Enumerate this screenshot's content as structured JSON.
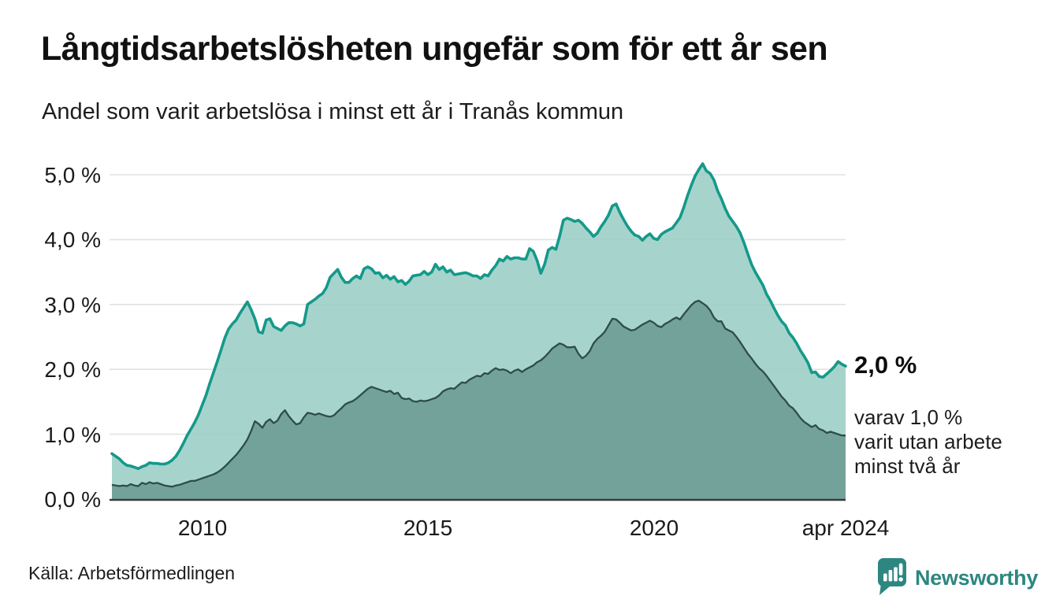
{
  "header": {
    "title": "Långtidsarbetslösheten ungefär som för ett år sen",
    "subtitle": "Andel som varit arbetslösa i minst ett år i Tranås kommun"
  },
  "chart_data": {
    "type": "area",
    "title": "Långtidsarbetslösheten ungefär som för ett år sen",
    "subtitle": "Andel som varit arbetslösa i minst ett år i Tranås kommun",
    "unit": "%",
    "frequency": "monthly",
    "x_start": "2008-01",
    "x_end": "2024-04",
    "ylim": [
      0,
      5.5
    ],
    "grid": "horizontal",
    "colors": {
      "line_1yr": "#14998a",
      "fill_1yr": "#9ccfc6",
      "line_2yr": "#2e4d48",
      "fill_2yr": "#6f9e96",
      "gridline": "#e2e2e2",
      "axis": "#3a3a3a"
    },
    "yticks": [
      {
        "v": 0,
        "label": "0,0 %"
      },
      {
        "v": 1,
        "label": "1,0 %"
      },
      {
        "v": 2,
        "label": "2,0 %"
      },
      {
        "v": 3,
        "label": "3,0 %"
      },
      {
        "v": 4,
        "label": "4,0 %"
      },
      {
        "v": 5,
        "label": "5,0 %"
      }
    ],
    "xticks": [
      {
        "t": 2010.0,
        "label": "2010"
      },
      {
        "t": 2015.0,
        "label": "2015"
      },
      {
        "t": 2020.0,
        "label": "2020"
      },
      {
        "t": 2024.25,
        "label": "apr 2024"
      }
    ],
    "series": [
      {
        "name": "Arbetslösa minst ett år",
        "values": [
          0.7,
          0.66,
          0.62,
          0.56,
          0.52,
          0.51,
          0.49,
          0.47,
          0.5,
          0.52,
          0.56,
          0.55,
          0.55,
          0.54,
          0.54,
          0.56,
          0.6,
          0.66,
          0.75,
          0.86,
          0.98,
          1.08,
          1.18,
          1.3,
          1.45,
          1.6,
          1.78,
          1.95,
          2.12,
          2.3,
          2.48,
          2.62,
          2.7,
          2.76,
          2.86,
          2.95,
          3.04,
          2.92,
          2.78,
          2.58,
          2.56,
          2.76,
          2.78,
          2.66,
          2.63,
          2.6,
          2.67,
          2.72,
          2.72,
          2.7,
          2.67,
          2.7,
          3.0,
          3.04,
          3.08,
          3.13,
          3.17,
          3.26,
          3.42,
          3.48,
          3.54,
          3.42,
          3.34,
          3.34,
          3.4,
          3.44,
          3.4,
          3.55,
          3.58,
          3.55,
          3.48,
          3.49,
          3.41,
          3.45,
          3.39,
          3.43,
          3.35,
          3.37,
          3.31,
          3.36,
          3.44,
          3.45,
          3.46,
          3.51,
          3.46,
          3.5,
          3.62,
          3.54,
          3.58,
          3.5,
          3.53,
          3.46,
          3.47,
          3.48,
          3.49,
          3.47,
          3.44,
          3.44,
          3.4,
          3.46,
          3.44,
          3.53,
          3.6,
          3.7,
          3.67,
          3.74,
          3.7,
          3.72,
          3.72,
          3.7,
          3.7,
          3.86,
          3.82,
          3.68,
          3.48,
          3.62,
          3.84,
          3.88,
          3.85,
          4.05,
          4.3,
          4.33,
          4.31,
          4.28,
          4.3,
          4.25,
          4.18,
          4.12,
          4.05,
          4.1,
          4.2,
          4.28,
          4.38,
          4.52,
          4.55,
          4.42,
          4.31,
          4.21,
          4.13,
          4.07,
          4.05,
          3.99,
          4.05,
          4.09,
          4.02,
          4.0,
          4.08,
          4.12,
          4.15,
          4.18,
          4.26,
          4.34,
          4.5,
          4.68,
          4.84,
          4.98,
          5.08,
          5.17,
          5.06,
          5.02,
          4.92,
          4.75,
          4.63,
          4.48,
          4.36,
          4.28,
          4.2,
          4.1,
          3.95,
          3.78,
          3.62,
          3.5,
          3.4,
          3.3,
          3.16,
          3.06,
          2.94,
          2.83,
          2.74,
          2.68,
          2.56,
          2.49,
          2.4,
          2.29,
          2.2,
          2.1,
          1.95,
          1.96,
          1.89,
          1.88,
          1.93,
          1.98,
          2.04,
          2.12,
          2.08,
          2.05
        ]
      },
      {
        "name": "Varav utan arbete minst två år",
        "values": [
          0.22,
          0.21,
          0.2,
          0.21,
          0.2,
          0.23,
          0.21,
          0.2,
          0.25,
          0.23,
          0.26,
          0.24,
          0.25,
          0.23,
          0.21,
          0.2,
          0.19,
          0.21,
          0.22,
          0.24,
          0.26,
          0.28,
          0.28,
          0.3,
          0.32,
          0.34,
          0.36,
          0.38,
          0.41,
          0.45,
          0.5,
          0.56,
          0.62,
          0.68,
          0.75,
          0.83,
          0.92,
          1.05,
          1.2,
          1.16,
          1.1,
          1.19,
          1.23,
          1.17,
          1.21,
          1.31,
          1.37,
          1.28,
          1.21,
          1.15,
          1.17,
          1.26,
          1.33,
          1.32,
          1.3,
          1.32,
          1.3,
          1.28,
          1.27,
          1.29,
          1.35,
          1.4,
          1.46,
          1.49,
          1.51,
          1.55,
          1.6,
          1.65,
          1.7,
          1.73,
          1.71,
          1.69,
          1.67,
          1.65,
          1.67,
          1.62,
          1.64,
          1.56,
          1.54,
          1.55,
          1.51,
          1.5,
          1.52,
          1.51,
          1.52,
          1.54,
          1.56,
          1.6,
          1.66,
          1.69,
          1.71,
          1.7,
          1.75,
          1.8,
          1.79,
          1.84,
          1.87,
          1.9,
          1.89,
          1.94,
          1.93,
          1.98,
          2.02,
          1.99,
          2.0,
          1.98,
          1.94,
          1.98,
          2.0,
          1.96,
          2.0,
          2.03,
          2.06,
          2.11,
          2.14,
          2.19,
          2.25,
          2.32,
          2.36,
          2.4,
          2.38,
          2.34,
          2.34,
          2.35,
          2.24,
          2.17,
          2.21,
          2.28,
          2.4,
          2.47,
          2.52,
          2.58,
          2.68,
          2.78,
          2.77,
          2.72,
          2.66,
          2.63,
          2.6,
          2.61,
          2.65,
          2.69,
          2.72,
          2.75,
          2.72,
          2.67,
          2.65,
          2.7,
          2.73,
          2.77,
          2.8,
          2.77,
          2.85,
          2.92,
          2.99,
          3.04,
          3.06,
          3.02,
          2.98,
          2.91,
          2.8,
          2.74,
          2.74,
          2.63,
          2.6,
          2.57,
          2.5,
          2.42,
          2.33,
          2.24,
          2.17,
          2.09,
          2.02,
          1.97,
          1.9,
          1.82,
          1.74,
          1.66,
          1.58,
          1.52,
          1.44,
          1.4,
          1.33,
          1.25,
          1.19,
          1.15,
          1.11,
          1.14,
          1.08,
          1.06,
          1.02,
          1.04,
          1.02,
          1.0,
          0.98,
          0.98
        ]
      }
    ],
    "annotations": {
      "value_label": "2,0 %",
      "note_lines": [
        "varav 1,0 %",
        "varit utan arbete",
        "minst två år"
      ]
    }
  },
  "footer": {
    "source": "Källa: Arbetsförmedlingen",
    "brand": "Newsworthy",
    "brand_color": "#2e8680"
  }
}
